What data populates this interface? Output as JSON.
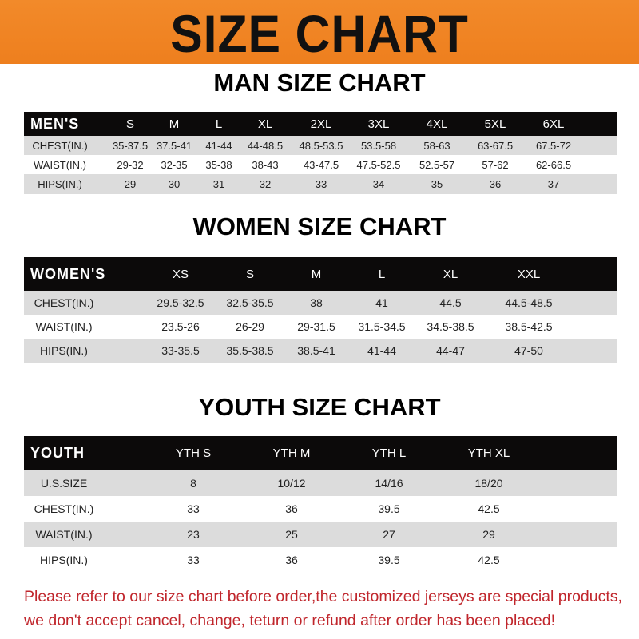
{
  "banner": {
    "title": "SIZE CHART",
    "color": "#ef8424"
  },
  "men": {
    "title": "MAN SIZE CHART",
    "headers": [
      "MEN'S",
      "S",
      "M",
      "L",
      "XL",
      "2XL",
      "3XL",
      "4XL",
      "5XL",
      "6XL"
    ],
    "rows": [
      [
        "CHEST(IN.)",
        "35-37.5",
        "37.5-41",
        "41-44",
        "44-48.5",
        "48.5-53.5",
        "53.5-58",
        "58-63",
        "63-67.5",
        "67.5-72"
      ],
      [
        "WAIST(IN.)",
        "29-32",
        "32-35",
        "35-38",
        "38-43",
        "43-47.5",
        "47.5-52.5",
        "52.5-57",
        "57-62",
        "62-66.5"
      ],
      [
        "HIPS(IN.)",
        "29",
        "30",
        "31",
        "32",
        "33",
        "34",
        "35",
        "36",
        "37"
      ]
    ]
  },
  "women": {
    "title": "WOMEN SIZE CHART",
    "headers": [
      "WOMEN'S",
      "XS",
      "S",
      "M",
      "L",
      "XL",
      "XXL"
    ],
    "rows": [
      [
        "CHEST(IN.)",
        "29.5-32.5",
        "32.5-35.5",
        "38",
        "41",
        "44.5",
        "44.5-48.5"
      ],
      [
        "WAIST(IN.)",
        "23.5-26",
        "26-29",
        "29-31.5",
        "31.5-34.5",
        "34.5-38.5",
        "38.5-42.5"
      ],
      [
        "HIPS(IN.)",
        "33-35.5",
        "35.5-38.5",
        "38.5-41",
        "41-44",
        "44-47",
        "47-50"
      ]
    ]
  },
  "youth": {
    "title": "YOUTH SIZE CHART",
    "headers": [
      "YOUTH",
      "YTH S",
      "YTH M",
      "YTH L",
      "YTH XL"
    ],
    "rows": [
      [
        "U.S.SIZE",
        "8",
        "10/12",
        "14/16",
        "18/20"
      ],
      [
        "CHEST(IN.)",
        "33",
        "36",
        "39.5",
        "42.5"
      ],
      [
        "WAIST(IN.)",
        "23",
        "25",
        "27",
        "29"
      ],
      [
        "HIPS(IN.)",
        "33",
        "36",
        "39.5",
        "42.5"
      ]
    ]
  },
  "footer": {
    "line1": "Please refer to our size chart before order,the customized jerseys are special products,",
    "line2": "we don't accept cancel, change, teturn or refund after order has been placed!",
    "color": "#c0262c"
  }
}
